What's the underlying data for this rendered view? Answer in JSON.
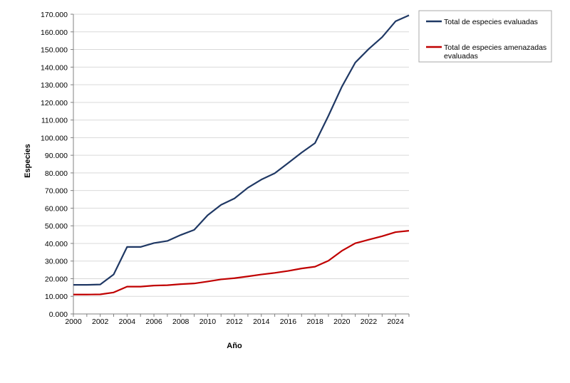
{
  "chart_data": {
    "type": "line",
    "title": "",
    "xlabel": "Año",
    "ylabel": "Especies",
    "xlim": [
      2000,
      2025
    ],
    "ylim": [
      0,
      170000
    ],
    "x_ticks": [
      2000,
      2002,
      2004,
      2006,
      2008,
      2010,
      2012,
      2014,
      2016,
      2018,
      2020,
      2022,
      2024
    ],
    "x_tick_labels": [
      "2000",
      "2002",
      "2004",
      "2006",
      "2008",
      "2010",
      "2012",
      "2014",
      "2016",
      "2018",
      "2020",
      "2022",
      "2024"
    ],
    "y_ticks": [
      0,
      10000,
      20000,
      30000,
      40000,
      50000,
      60000,
      70000,
      80000,
      90000,
      100000,
      110000,
      120000,
      130000,
      140000,
      150000,
      160000,
      170000
    ],
    "y_tick_labels": [
      "0.000",
      "10.000",
      "20.000",
      "30.000",
      "40.000",
      "50.000",
      "60.000",
      "70.000",
      "80.000",
      "90.000",
      "100.000",
      "110.000",
      "120.000",
      "130.000",
      "140.000",
      "150.000",
      "160.000",
      "170.000"
    ],
    "grid": "horizontal",
    "legend_position": "top-right, outside plot",
    "x": [
      2000,
      2001,
      2002,
      2003,
      2004,
      2005,
      2006,
      2007,
      2008,
      2009,
      2010,
      2011,
      2012,
      2013,
      2014,
      2015,
      2016,
      2017,
      2018,
      2019,
      2020,
      2021,
      2022,
      2023,
      2024,
      2025
    ],
    "series": [
      {
        "name": "Total de especies evaluadas",
        "color": "#1f3864",
        "values": [
          16500,
          16500,
          16700,
          22400,
          38000,
          38000,
          40200,
          41400,
          44800,
          47700,
          56000,
          61900,
          65500,
          71600,
          76200,
          79800,
          85600,
          91500,
          96900,
          112400,
          128900,
          142600,
          150300,
          157000,
          166000,
          169400
        ]
      },
      {
        "name": "Total de especies amenazadas evaluadas",
        "color": "#c00000",
        "values": [
          11000,
          11000,
          11100,
          12200,
          15500,
          15500,
          16100,
          16300,
          16900,
          17300,
          18400,
          19600,
          20300,
          21300,
          22400,
          23300,
          24400,
          25800,
          26800,
          30200,
          35800,
          40100,
          42100,
          44100,
          46400,
          47200
        ]
      }
    ]
  }
}
